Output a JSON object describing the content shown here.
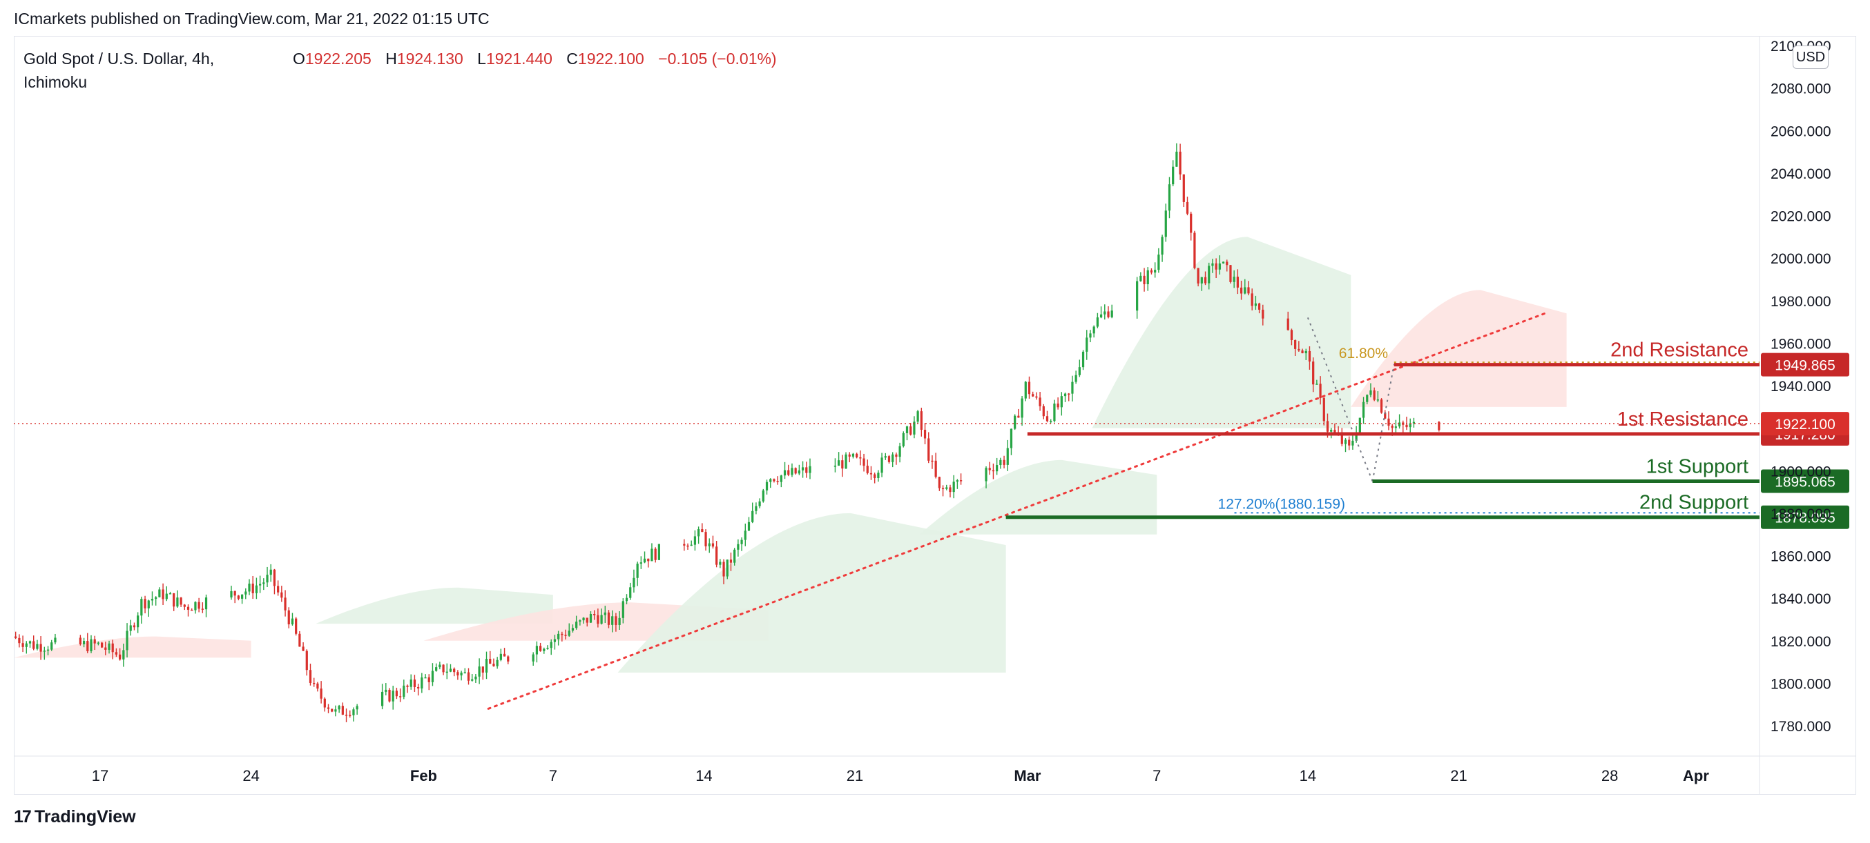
{
  "header": {
    "publisher_line": "ICmarkets published on TradingView.com, Mar 21, 2022 01:15 UTC",
    "symbol_line": "Gold Spot / U.S. Dollar, 4h,",
    "indicator": "Ichimoku",
    "ohlc": {
      "o_label": "O",
      "o_value": "1922.205",
      "h_label": "H",
      "h_value": "1924.130",
      "l_label": "L",
      "l_value": "1921.440",
      "c_label": "C",
      "c_value": "1922.100",
      "change": "−0.105 (−0.01%)"
    },
    "currency": "USD"
  },
  "footer": {
    "brand": "TradingView",
    "logo_mark": "17"
  },
  "colors": {
    "up": "#26a544",
    "down": "#d9302c",
    "resistance": "#c62828",
    "support": "#1b6b25",
    "trendline": "#ef3b3b",
    "fib61": "#c8961e",
    "fib127": "#1e7fd1",
    "cloud_bull": "#e3f2e6",
    "cloud_bear": "#fde3e1"
  },
  "chart_data": {
    "type": "candlestick",
    "timeframe": "4h",
    "ylim": [
      1770,
      2100
    ],
    "y_ticks": [
      {
        "value": 1780,
        "label": "1780.000"
      },
      {
        "value": 1800,
        "label": "1800.000"
      },
      {
        "value": 1820,
        "label": "1820.000"
      },
      {
        "value": 1840,
        "label": "1840.000"
      },
      {
        "value": 1860,
        "label": "1860.000"
      },
      {
        "value": 1880,
        "label": "1880.000"
      },
      {
        "value": 1900,
        "label": "1900.000"
      },
      {
        "value": 1920,
        "label": "1920.000"
      },
      {
        "value": 1940,
        "label": "1940.000"
      },
      {
        "value": 1960,
        "label": "1960.000"
      },
      {
        "value": 1980,
        "label": "1980.000"
      },
      {
        "value": 2000,
        "label": "2000.000"
      },
      {
        "value": 2020,
        "label": "2020.000"
      },
      {
        "value": 2040,
        "label": "2040.000"
      },
      {
        "value": 2060,
        "label": "2060.000"
      },
      {
        "value": 2080,
        "label": "2080.000"
      },
      {
        "value": 2100,
        "label": "2100.000"
      }
    ],
    "x_ticks": [
      {
        "date": "2022-01-17",
        "label": "17"
      },
      {
        "date": "2022-01-24",
        "label": "24"
      },
      {
        "date": "2022-02-01",
        "label": "Feb"
      },
      {
        "date": "2022-02-07",
        "label": "7"
      },
      {
        "date": "2022-02-14",
        "label": "14"
      },
      {
        "date": "2022-02-21",
        "label": "21"
      },
      {
        "date": "2022-03-01",
        "label": "Mar"
      },
      {
        "date": "2022-03-07",
        "label": "7"
      },
      {
        "date": "2022-03-14",
        "label": "14"
      },
      {
        "date": "2022-03-21",
        "label": "21"
      },
      {
        "date": "2022-03-28",
        "label": "28"
      },
      {
        "date": "2022-04-01",
        "label": "Apr"
      }
    ],
    "price_path": [
      [
        "2022-01-13",
        1822
      ],
      [
        "2022-01-14",
        1818
      ],
      [
        "2022-01-17",
        1818
      ],
      [
        "2022-01-18",
        1813
      ],
      [
        "2022-01-19",
        1838
      ],
      [
        "2022-01-20",
        1842
      ],
      [
        "2022-01-21",
        1836
      ],
      [
        "2022-01-24",
        1844
      ],
      [
        "2022-01-25",
        1850
      ],
      [
        "2022-01-26",
        1827
      ],
      [
        "2022-01-27",
        1797
      ],
      [
        "2022-01-28",
        1786
      ],
      [
        "2022-01-31",
        1796
      ],
      [
        "2022-02-01",
        1801
      ],
      [
        "2022-02-02",
        1807
      ],
      [
        "2022-02-03",
        1804
      ],
      [
        "2022-02-04",
        1808
      ],
      [
        "2022-02-07",
        1820
      ],
      [
        "2022-02-08",
        1826
      ],
      [
        "2022-02-09",
        1832
      ],
      [
        "2022-02-10",
        1828
      ],
      [
        "2022-02-11",
        1858
      ],
      [
        "2022-02-14",
        1870
      ],
      [
        "2022-02-15",
        1852
      ],
      [
        "2022-02-16",
        1870
      ],
      [
        "2022-02-17",
        1897
      ],
      [
        "2022-02-18",
        1898
      ],
      [
        "2022-02-21",
        1905
      ],
      [
        "2022-02-22",
        1900
      ],
      [
        "2022-02-23",
        1910
      ],
      [
        "2022-02-24",
        1925
      ],
      [
        "2022-02-25",
        1890
      ],
      [
        "2022-02-28",
        1905
      ],
      [
        "2022-03-01",
        1940
      ],
      [
        "2022-03-02",
        1925
      ],
      [
        "2022-03-03",
        1935
      ],
      [
        "2022-03-04",
        1968
      ],
      [
        "2022-03-07",
        1995
      ],
      [
        "2022-03-08",
        2050
      ],
      [
        "2022-03-09",
        1988
      ],
      [
        "2022-03-10",
        1998
      ],
      [
        "2022-03-11",
        1985
      ],
      [
        "2022-03-14",
        1955
      ],
      [
        "2022-03-15",
        1920
      ],
      [
        "2022-03-16",
        1910
      ],
      [
        "2022-03-17",
        1940
      ],
      [
        "2022-03-18",
        1920
      ],
      [
        "2022-03-20",
        1922.1
      ]
    ],
    "ichimoku_cloud": [
      {
        "from": "2022-01-13",
        "to": "2022-01-24",
        "top": 1822,
        "bottom": 1812,
        "bias": "bear"
      },
      {
        "from": "2022-01-27",
        "to": "2022-02-07",
        "top": 1845,
        "bottom": 1828,
        "bias": "bull"
      },
      {
        "from": "2022-02-01",
        "to": "2022-02-17",
        "top": 1838,
        "bottom": 1820,
        "bias": "bear"
      },
      {
        "from": "2022-02-10",
        "to": "2022-02-28",
        "top": 1880,
        "bottom": 1805,
        "bias": "bull"
      },
      {
        "from": "2022-02-24",
        "to": "2022-03-07",
        "top": 1905,
        "bottom": 1870,
        "bias": "bull"
      },
      {
        "from": "2022-03-04",
        "to": "2022-03-16",
        "top": 2010,
        "bottom": 1920,
        "bias": "bull"
      },
      {
        "from": "2022-03-16",
        "to": "2022-03-26",
        "top": 1985,
        "bottom": 1930,
        "bias": "bear"
      }
    ],
    "levels": [
      {
        "name": "2nd Resistance",
        "value": 1949.865,
        "label": "1949.865",
        "kind": "resistance",
        "from": "2022-03-18"
      },
      {
        "name": "1st Resistance",
        "value": 1917.28,
        "label": "1917.280",
        "kind": "resistance",
        "from": "2022-03-01"
      },
      {
        "name": "1st Support",
        "value": 1895.065,
        "label": "1895.065",
        "kind": "support",
        "from": "2022-03-17"
      },
      {
        "name": "2nd Support",
        "value": 1878.095,
        "label": "1878.095",
        "kind": "support",
        "from": "2022-02-28"
      }
    ],
    "current_price": {
      "value": 1922.1,
      "label": "1922.100"
    },
    "trendline": {
      "from": [
        "2022-02-04",
        1788
      ],
      "to": [
        "2022-03-25",
        1974
      ]
    },
    "fib_levels": [
      {
        "label": "61.80%",
        "value": 1951,
        "color": "fib61"
      },
      {
        "label": "127.20%(1880.159)",
        "value": 1880.159,
        "color": "fib127"
      }
    ],
    "swing_lines": [
      [
        [
          "2022-03-14",
          1972
        ],
        [
          "2022-03-17",
          1895
        ]
      ],
      [
        [
          "2022-03-17",
          1895
        ],
        [
          "2022-03-18",
          1950
        ]
      ]
    ]
  }
}
